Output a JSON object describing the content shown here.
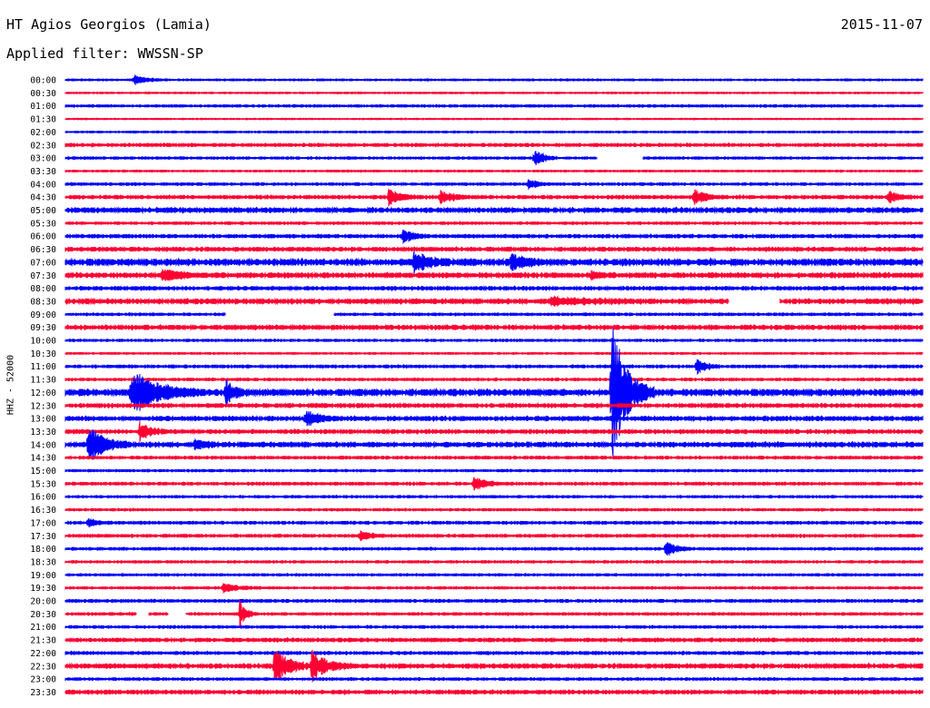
{
  "header": {
    "station": "HT Agios Georgios (Lamia)",
    "date": "2015-11-07",
    "filter": "Applied filter: WWSSN-SP"
  },
  "chart_data": {
    "type": "line",
    "title": "HT Agios Georgios (Lamia)",
    "subtitle": "Applied filter: WWSSN-SP",
    "date": "2015-11-07",
    "ylabel": "HHZ - 52000",
    "trace_minutes": 30,
    "colors": [
      "#0000ff",
      "#ff0033"
    ],
    "rows": [
      "00:00",
      "00:30",
      "01:00",
      "01:30",
      "02:00",
      "02:30",
      "03:00",
      "03:30",
      "04:00",
      "04:30",
      "05:00",
      "05:30",
      "06:00",
      "06:30",
      "07:00",
      "07:30",
      "08:00",
      "08:30",
      "09:00",
      "09:30",
      "10:00",
      "10:30",
      "11:00",
      "11:30",
      "12:00",
      "12:30",
      "13:00",
      "13:30",
      "14:00",
      "14:30",
      "15:00",
      "15:30",
      "16:00",
      "16:30",
      "17:00",
      "17:30",
      "18:00",
      "18:30",
      "19:00",
      "19:30",
      "20:00",
      "20:30",
      "21:00",
      "21:30",
      "22:00",
      "22:30",
      "23:00",
      "23:30"
    ],
    "noise": [
      0.8,
      0.7,
      1.0,
      0.6,
      0.8,
      1.3,
      1.0,
      0.8,
      1.1,
      1.4,
      2.0,
      1.1,
      1.4,
      1.6,
      2.6,
      2.0,
      1.5,
      2.0,
      1.1,
      1.8,
      1.0,
      0.8,
      1.2,
      1.1,
      2.6,
      1.6,
      1.8,
      1.6,
      2.0,
      1.2,
      1.0,
      1.2,
      1.0,
      1.0,
      1.2,
      1.2,
      1.1,
      1.0,
      1.0,
      1.0,
      1.2,
      1.1,
      1.1,
      1.5,
      1.3,
      1.8,
      1.1,
      1.6
    ],
    "events": [
      {
        "row": 0,
        "minute": 2.4,
        "amplitude": 4,
        "duration": 1.2
      },
      {
        "row": 6,
        "minute": 16.4,
        "amplitude": 10,
        "duration": 0.8
      },
      {
        "row": 8,
        "minute": 16.2,
        "amplitude": 5,
        "duration": 0.8
      },
      {
        "row": 9,
        "minute": 11.3,
        "amplitude": 7,
        "duration": 1.2
      },
      {
        "row": 9,
        "minute": 13.1,
        "amplitude": 6,
        "duration": 1.2
      },
      {
        "row": 9,
        "minute": 22.0,
        "amplitude": 8,
        "duration": 1.0
      },
      {
        "row": 9,
        "minute": 28.8,
        "amplitude": 6,
        "duration": 1.0
      },
      {
        "row": 12,
        "minute": 11.8,
        "amplitude": 7,
        "duration": 1.0
      },
      {
        "row": 14,
        "minute": 12.2,
        "amplitude": 9,
        "duration": 1.5
      },
      {
        "row": 14,
        "minute": 15.6,
        "amplitude": 8,
        "duration": 1.2
      },
      {
        "row": 15,
        "minute": 3.4,
        "amplitude": 5,
        "duration": 2.0
      },
      {
        "row": 15,
        "minute": 18.4,
        "amplitude": 4,
        "duration": 0.8
      },
      {
        "row": 17,
        "minute": 17.0,
        "amplitude": 4,
        "duration": 3.0
      },
      {
        "row": 22,
        "minute": 22.1,
        "amplitude": 8,
        "duration": 0.8
      },
      {
        "row": 24,
        "minute": 2.3,
        "amplitude": 22,
        "duration": 2.5
      },
      {
        "row": 24,
        "minute": 5.6,
        "amplitude": 14,
        "duration": 0.8
      },
      {
        "row": 24,
        "minute": 19.1,
        "amplitude": 70,
        "duration": 1.5
      },
      {
        "row": 26,
        "minute": 8.4,
        "amplitude": 8,
        "duration": 1.2
      },
      {
        "row": 27,
        "minute": 2.6,
        "amplitude": 9,
        "duration": 1.0
      },
      {
        "row": 28,
        "minute": 0.8,
        "amplitude": 18,
        "duration": 1.5
      },
      {
        "row": 28,
        "minute": 4.5,
        "amplitude": 5,
        "duration": 1.0
      },
      {
        "row": 31,
        "minute": 14.3,
        "amplitude": 7,
        "duration": 1.0
      },
      {
        "row": 34,
        "minute": 0.8,
        "amplitude": 4,
        "duration": 0.8
      },
      {
        "row": 35,
        "minute": 10.3,
        "amplitude": 4,
        "duration": 1.2
      },
      {
        "row": 36,
        "minute": 21.0,
        "amplitude": 8,
        "duration": 1.0
      },
      {
        "row": 39,
        "minute": 5.5,
        "amplitude": 4,
        "duration": 1.5
      },
      {
        "row": 41,
        "minute": 6.1,
        "amplitude": 12,
        "duration": 0.6
      },
      {
        "row": 45,
        "minute": 7.3,
        "amplitude": 16,
        "duration": 1.5
      },
      {
        "row": 45,
        "minute": 8.6,
        "amplitude": 14,
        "duration": 1.5
      }
    ],
    "gaps": [
      {
        "row": 6,
        "start_minute": 18.6,
        "end_minute": 20.2
      },
      {
        "row": 17,
        "start_minute": 23.2,
        "end_minute": 25.0
      },
      {
        "row": 18,
        "start_minute": 5.6,
        "end_minute": 9.4
      },
      {
        "row": 41,
        "start_minute": 2.5,
        "end_minute": 2.9
      },
      {
        "row": 41,
        "start_minute": 3.6,
        "end_minute": 4.2
      }
    ]
  }
}
